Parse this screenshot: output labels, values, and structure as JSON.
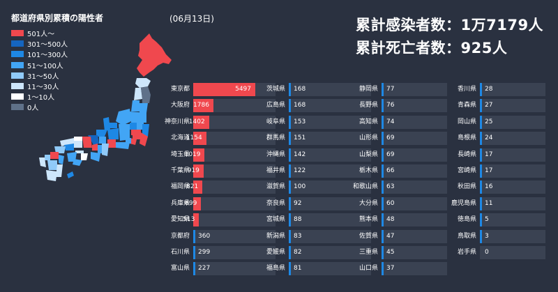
{
  "header": {
    "title": "都道府県別累積の陽性者",
    "date": "(06月13日)",
    "total_cases": "累計感染者数：1万7179人",
    "total_deaths": "累計死亡者数：925人"
  },
  "legend": [
    {
      "label": "501人～",
      "color": "#f0484e"
    },
    {
      "label": "301～500人",
      "color": "#1565c0"
    },
    {
      "label": "101～300人",
      "color": "#1e88e5"
    },
    {
      "label": "51～100人",
      "color": "#42a5f5"
    },
    {
      "label": "31～50人",
      "color": "#90caf9"
    },
    {
      "label": "11～30人",
      "color": "#cde6fb"
    },
    {
      "label": "1～10人",
      "color": "#ffffff"
    },
    {
      "label": "0人",
      "color": "#5f7189"
    }
  ],
  "colors": {
    "background": "#2a3140",
    "track": "#3a4252",
    "high": "#f0484e",
    "blue": "#1e88e5"
  },
  "chart_data": {
    "type": "bar",
    "max_value": 5497,
    "categories": [
      "東京都",
      "大阪府",
      "神奈川県",
      "北海道",
      "埼玉県",
      "千葉県",
      "福岡県",
      "兵庫県",
      "愛知県",
      "京都府",
      "石川県",
      "富山県",
      "茨城県",
      "広島県",
      "岐阜県",
      "群馬県",
      "沖縄県",
      "福井県",
      "滋賀県",
      "奈良県",
      "宮城県",
      "新潟県",
      "愛媛県",
      "福島県",
      "静岡県",
      "長野県",
      "高知県",
      "山形県",
      "山梨県",
      "栃木県",
      "和歌山県",
      "大分県",
      "熊本県",
      "佐賀県",
      "三重県",
      "山口県",
      "香川県",
      "青森県",
      "岡山県",
      "島根県",
      "長崎県",
      "宮崎県",
      "秋田県",
      "鹿児島県",
      "徳島県",
      "鳥取県",
      "岩手県"
    ],
    "values": [
      5497,
      1786,
      1402,
      1154,
      1019,
      919,
      821,
      699,
      513,
      360,
      299,
      227,
      168,
      168,
      153,
      151,
      142,
      122,
      100,
      92,
      88,
      83,
      82,
      81,
      77,
      76,
      74,
      69,
      69,
      66,
      63,
      60,
      48,
      47,
      45,
      37,
      28,
      27,
      25,
      24,
      17,
      17,
      16,
      11,
      5,
      3,
      0
    ]
  }
}
